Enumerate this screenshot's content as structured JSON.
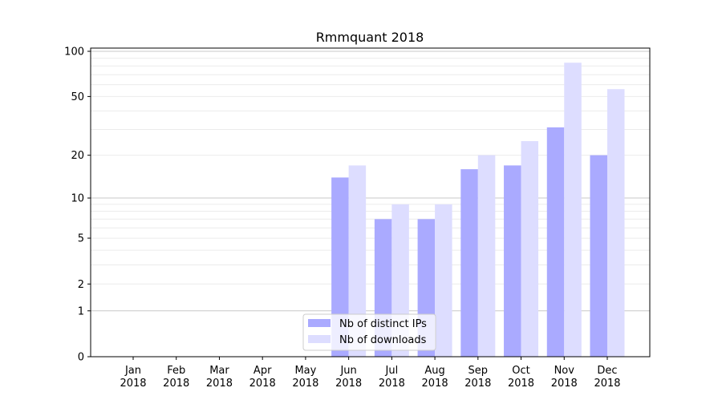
{
  "chart_data": {
    "type": "bar",
    "title": "Rmmquant 2018",
    "xlabel": "",
    "ylabel": "",
    "yscale": "log(1+y)",
    "ylim": [
      0,
      105
    ],
    "yticks": [
      0,
      1,
      2,
      5,
      10,
      20,
      50,
      100
    ],
    "grid": true,
    "legend_position": "bottom-center",
    "categories": [
      "Jan\n2018",
      "Feb\n2018",
      "Mar\n2018",
      "Apr\n2018",
      "May\n2018",
      "Jun\n2018",
      "Jul\n2018",
      "Aug\n2018",
      "Sep\n2018",
      "Oct\n2018",
      "Nov\n2018",
      "Dec\n2018"
    ],
    "series": [
      {
        "name": "Nb of distinct IPs",
        "color": "#aaaaff",
        "values": [
          0,
          0,
          0,
          0,
          0,
          14,
          7,
          7,
          16,
          17,
          31,
          20
        ]
      },
      {
        "name": "Nb of downloads",
        "color": "#ddddff",
        "values": [
          0,
          0,
          0,
          0,
          0,
          17,
          9,
          9,
          20,
          25,
          84,
          56
        ]
      }
    ]
  }
}
